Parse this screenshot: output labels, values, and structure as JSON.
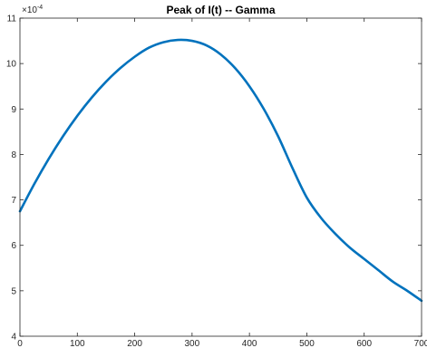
{
  "chart_data": {
    "type": "line",
    "title": "Peak of I(t) -- Gamma",
    "xlabel": "",
    "ylabel": "",
    "xlim": [
      0,
      700
    ],
    "ylim": [
      4,
      11
    ],
    "y_multiplier_label": "×10",
    "y_multiplier_exponent": "-4",
    "x_ticks": [
      0,
      100,
      200,
      300,
      400,
      500,
      600,
      700
    ],
    "y_ticks": [
      4,
      5,
      6,
      7,
      8,
      9,
      10,
      11
    ],
    "grid": false,
    "line_color": "#0072BD",
    "series": [
      {
        "x": [
          0,
          25,
          50,
          75,
          100,
          125,
          150,
          175,
          200,
          225,
          250,
          275,
          300,
          325,
          350,
          375,
          400,
          425,
          450,
          475,
          500,
          525,
          550,
          575,
          600,
          625,
          650,
          675,
          700
        ],
        "values": [
          6.75,
          7.35,
          7.9,
          8.4,
          8.85,
          9.25,
          9.6,
          9.9,
          10.15,
          10.35,
          10.47,
          10.52,
          10.5,
          10.4,
          10.2,
          9.9,
          9.5,
          9.0,
          8.4,
          7.7,
          7.05,
          6.6,
          6.25,
          5.95,
          5.7,
          5.45,
          5.2,
          5.0,
          4.78
        ]
      }
    ]
  }
}
